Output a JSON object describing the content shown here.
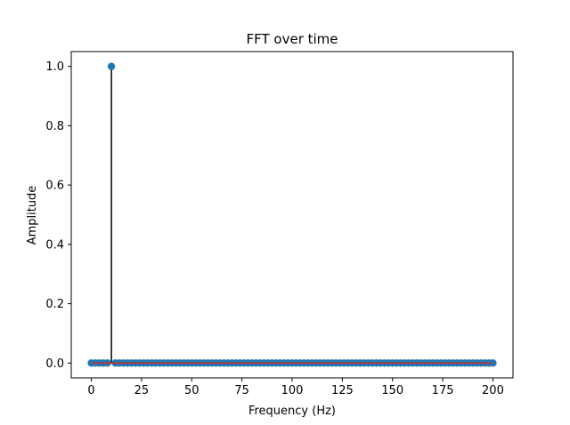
{
  "chart_data": {
    "type": "stem",
    "title": "FFT over time",
    "xlabel": "Frequency (Hz)",
    "ylabel": "Amplitude",
    "xlim": [
      -10,
      210
    ],
    "ylim": [
      -0.05,
      1.05
    ],
    "xticks": [
      0,
      25,
      50,
      75,
      100,
      125,
      150,
      175,
      200
    ],
    "yticks": [
      0.0,
      0.2,
      0.4,
      0.6,
      0.8,
      1.0
    ],
    "xtick_labels": [
      "0",
      "25",
      "50",
      "75",
      "100",
      "125",
      "150",
      "175",
      "200"
    ],
    "ytick_labels": [
      "0.0",
      "0.2",
      "0.4",
      "0.6",
      "0.8",
      "1.0"
    ],
    "grid": false,
    "stem_color": "#000000",
    "marker_color": "#1f77b4",
    "baseline_color": "#d62728",
    "series": [
      {
        "x": [
          0,
          2,
          4,
          6,
          8,
          10,
          12,
          14,
          16,
          18,
          20,
          22,
          24,
          26,
          28,
          30,
          32,
          34,
          36,
          38,
          40,
          42,
          44,
          46,
          48,
          50,
          52,
          54,
          56,
          58,
          60,
          62,
          64,
          66,
          68,
          70,
          72,
          74,
          76,
          78,
          80,
          82,
          84,
          86,
          88,
          90,
          92,
          94,
          96,
          98,
          100,
          102,
          104,
          106,
          108,
          110,
          112,
          114,
          116,
          118,
          120,
          122,
          124,
          126,
          128,
          130,
          132,
          134,
          136,
          138,
          140,
          142,
          144,
          146,
          148,
          150,
          152,
          154,
          156,
          158,
          160,
          162,
          164,
          166,
          168,
          170,
          172,
          174,
          176,
          178,
          180,
          182,
          184,
          186,
          188,
          190,
          192,
          194,
          196,
          198,
          200
        ],
        "y": [
          0,
          0,
          0,
          0,
          0,
          1,
          0,
          0,
          0,
          0,
          0,
          0,
          0,
          0,
          0,
          0,
          0,
          0,
          0,
          0,
          0,
          0,
          0,
          0,
          0,
          0,
          0,
          0,
          0,
          0,
          0,
          0,
          0,
          0,
          0,
          0,
          0,
          0,
          0,
          0,
          0,
          0,
          0,
          0,
          0,
          0,
          0,
          0,
          0,
          0,
          0,
          0,
          0,
          0,
          0,
          0,
          0,
          0,
          0,
          0,
          0,
          0,
          0,
          0,
          0,
          0,
          0,
          0,
          0,
          0,
          0,
          0,
          0,
          0,
          0,
          0,
          0,
          0,
          0,
          0,
          0,
          0,
          0,
          0,
          0,
          0,
          0,
          0,
          0,
          0,
          0,
          0,
          0,
          0,
          0,
          0,
          0,
          0,
          0,
          0,
          0
        ]
      }
    ]
  }
}
